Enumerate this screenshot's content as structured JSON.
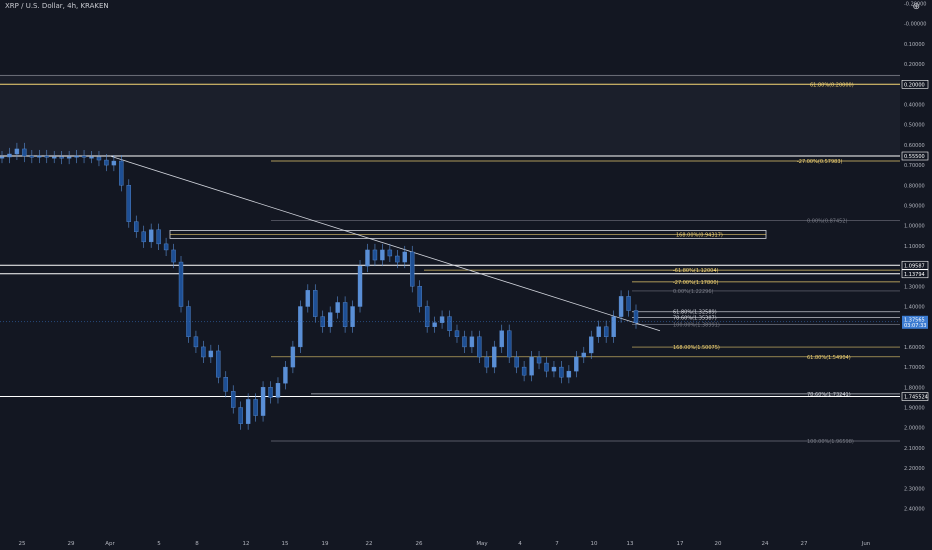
{
  "header": {
    "symbol_title": "XRP / U.S. Dollar, 4h, KRAKEN",
    "corner_glyph": "⊕"
  },
  "colors": {
    "background": "#131722",
    "candle": "#5a8fd6",
    "fib_gold": "#f7d774",
    "fib_grey": "#787b86",
    "white_line": "#ffffff",
    "price_tag": "#3b7bd1",
    "axis_text": "#b2b5be"
  },
  "chart_data": {
    "type": "line",
    "title": "XRP / U.S. Dollar, 4h, KRAKEN",
    "scale": "log (inverted)",
    "xlabel": "",
    "ylabel": "",
    "x_ticks": [
      "25",
      "29",
      "Apr",
      "5",
      "8",
      "12",
      "15",
      "19",
      "22",
      "26",
      "May",
      "4",
      "7",
      "10",
      "13",
      "17",
      "20",
      "24",
      "27",
      "Jun"
    ],
    "y_ticks": [
      "-0.20000",
      "-0.00000",
      "0.10000",
      "0.20000",
      "0.30000",
      "0.40000",
      "0.50000",
      "0.60000",
      "0.70000",
      "0.80000",
      "0.90000",
      "1.00000",
      "1.10000",
      "1.20000",
      "1.30000",
      "1.40000",
      "1.50000",
      "1.60000",
      "1.70000",
      "1.80000",
      "1.90000",
      "2.00000",
      "2.10000",
      "2.20000",
      "2.30000",
      "2.40000"
    ],
    "price_tags": [
      {
        "label": "0.20000",
        "value": 0.2
      },
      {
        "label": "0.55500",
        "value": 0.555
      },
      {
        "label": "1.09587",
        "value": 1.09587
      },
      {
        "label": "1.13794",
        "value": 1.13794
      },
      {
        "label": "1.745524",
        "value": 1.7455
      }
    ],
    "current_price": {
      "label": "1.37565",
      "time_left": "03:07:33",
      "value": 1.3757
    },
    "series": [
      {
        "values": [
          0.56,
          0.545,
          0.52,
          0.555,
          0.56,
          0.555,
          0.56,
          0.56,
          0.565,
          0.56,
          0.555,
          0.56,
          0.56,
          0.575,
          0.6,
          0.58,
          0.7,
          0.88,
          0.93,
          0.98,
          0.92,
          0.99,
          1.02,
          1.08,
          1.3,
          1.45,
          1.5,
          1.55,
          1.52,
          1.65,
          1.72,
          1.8,
          1.88,
          1.76,
          1.84,
          1.7,
          1.75,
          1.68,
          1.6,
          1.5,
          1.3,
          1.22,
          1.35,
          1.4,
          1.33,
          1.28,
          1.4,
          1.3,
          1.1,
          1.02,
          1.07,
          1.02,
          1.05,
          1.08,
          1.03,
          1.2,
          1.3,
          1.4,
          1.38,
          1.35,
          1.42,
          1.45,
          1.5,
          1.45,
          1.55,
          1.6,
          1.5,
          1.42,
          1.55,
          1.6,
          1.64,
          1.55,
          1.58,
          1.62,
          1.6,
          1.65,
          1.62,
          1.55,
          1.53,
          1.45,
          1.4,
          1.45,
          1.35,
          1.25,
          1.32,
          1.38
        ]
      }
    ],
    "fib_labels": [
      {
        "text": "61.80%(0.20000)",
        "value": 0.2,
        "color": "gold"
      },
      {
        "text": "-27.00%(0.57983)",
        "value": 0.5798,
        "color": "gold"
      },
      {
        "text": "0.00%(0.87452)",
        "value": 0.8745,
        "color": "grey"
      },
      {
        "text": "168.00%(0.94317)",
        "value": 0.9432,
        "color": "gold"
      },
      {
        "text": "-61.80%(1.12004)",
        "value": 1.12,
        "color": "gold"
      },
      {
        "text": "-27.00%(1.17800)",
        "value": 1.178,
        "color": "gold"
      },
      {
        "text": "0.00%(1.22296)",
        "value": 1.223,
        "color": "grey"
      },
      {
        "text": "61.80%(1.32589)",
        "value": 1.3259,
        "color": "white"
      },
      {
        "text": "78.60%(1.35387)",
        "value": 1.3539,
        "color": "white"
      },
      {
        "text": "100.00%(1.38991)",
        "value": 1.3899,
        "color": "grey"
      },
      {
        "text": "168.00%(1.50075)",
        "value": 1.5008,
        "color": "gold"
      },
      {
        "text": "61.80%(1.54904)",
        "value": 1.549,
        "color": "gold"
      },
      {
        "text": "78.60%(1.73241)",
        "value": 1.7324,
        "color": "white"
      },
      {
        "text": "100.00%(1.96598)",
        "value": 1.966,
        "color": "grey"
      }
    ]
  }
}
